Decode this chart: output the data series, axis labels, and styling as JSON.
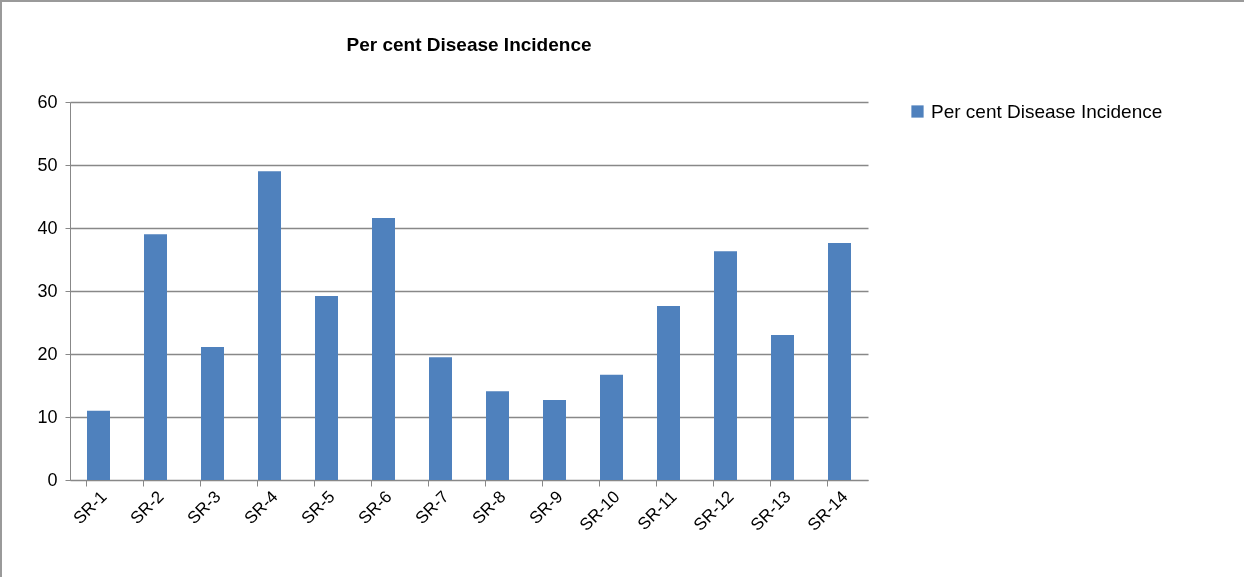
{
  "chart_data": {
    "type": "bar",
    "title": "Per cent Disease  Incidence",
    "categories": [
      "SR-1",
      "SR-2",
      "SR-3",
      "SR-4",
      "SR-5",
      "SR-6",
      "SR-7",
      "SR-8",
      "SR-9",
      "SR-10",
      "SR-11",
      "SR-12",
      "SR-13",
      "SR-14"
    ],
    "series": [
      {
        "name": "Per cent Disease  Incidence",
        "color": "#4f81bd",
        "values": [
          11,
          39,
          21.1,
          49,
          29.2,
          41.6,
          19.5,
          14.1,
          12.7,
          16.7,
          27.6,
          36.3,
          23,
          37.6
        ]
      }
    ],
    "ylim": [
      0,
      60
    ],
    "yticks": [
      0,
      10,
      20,
      30,
      40,
      50,
      60
    ],
    "grid": "y",
    "legend": "right"
  }
}
